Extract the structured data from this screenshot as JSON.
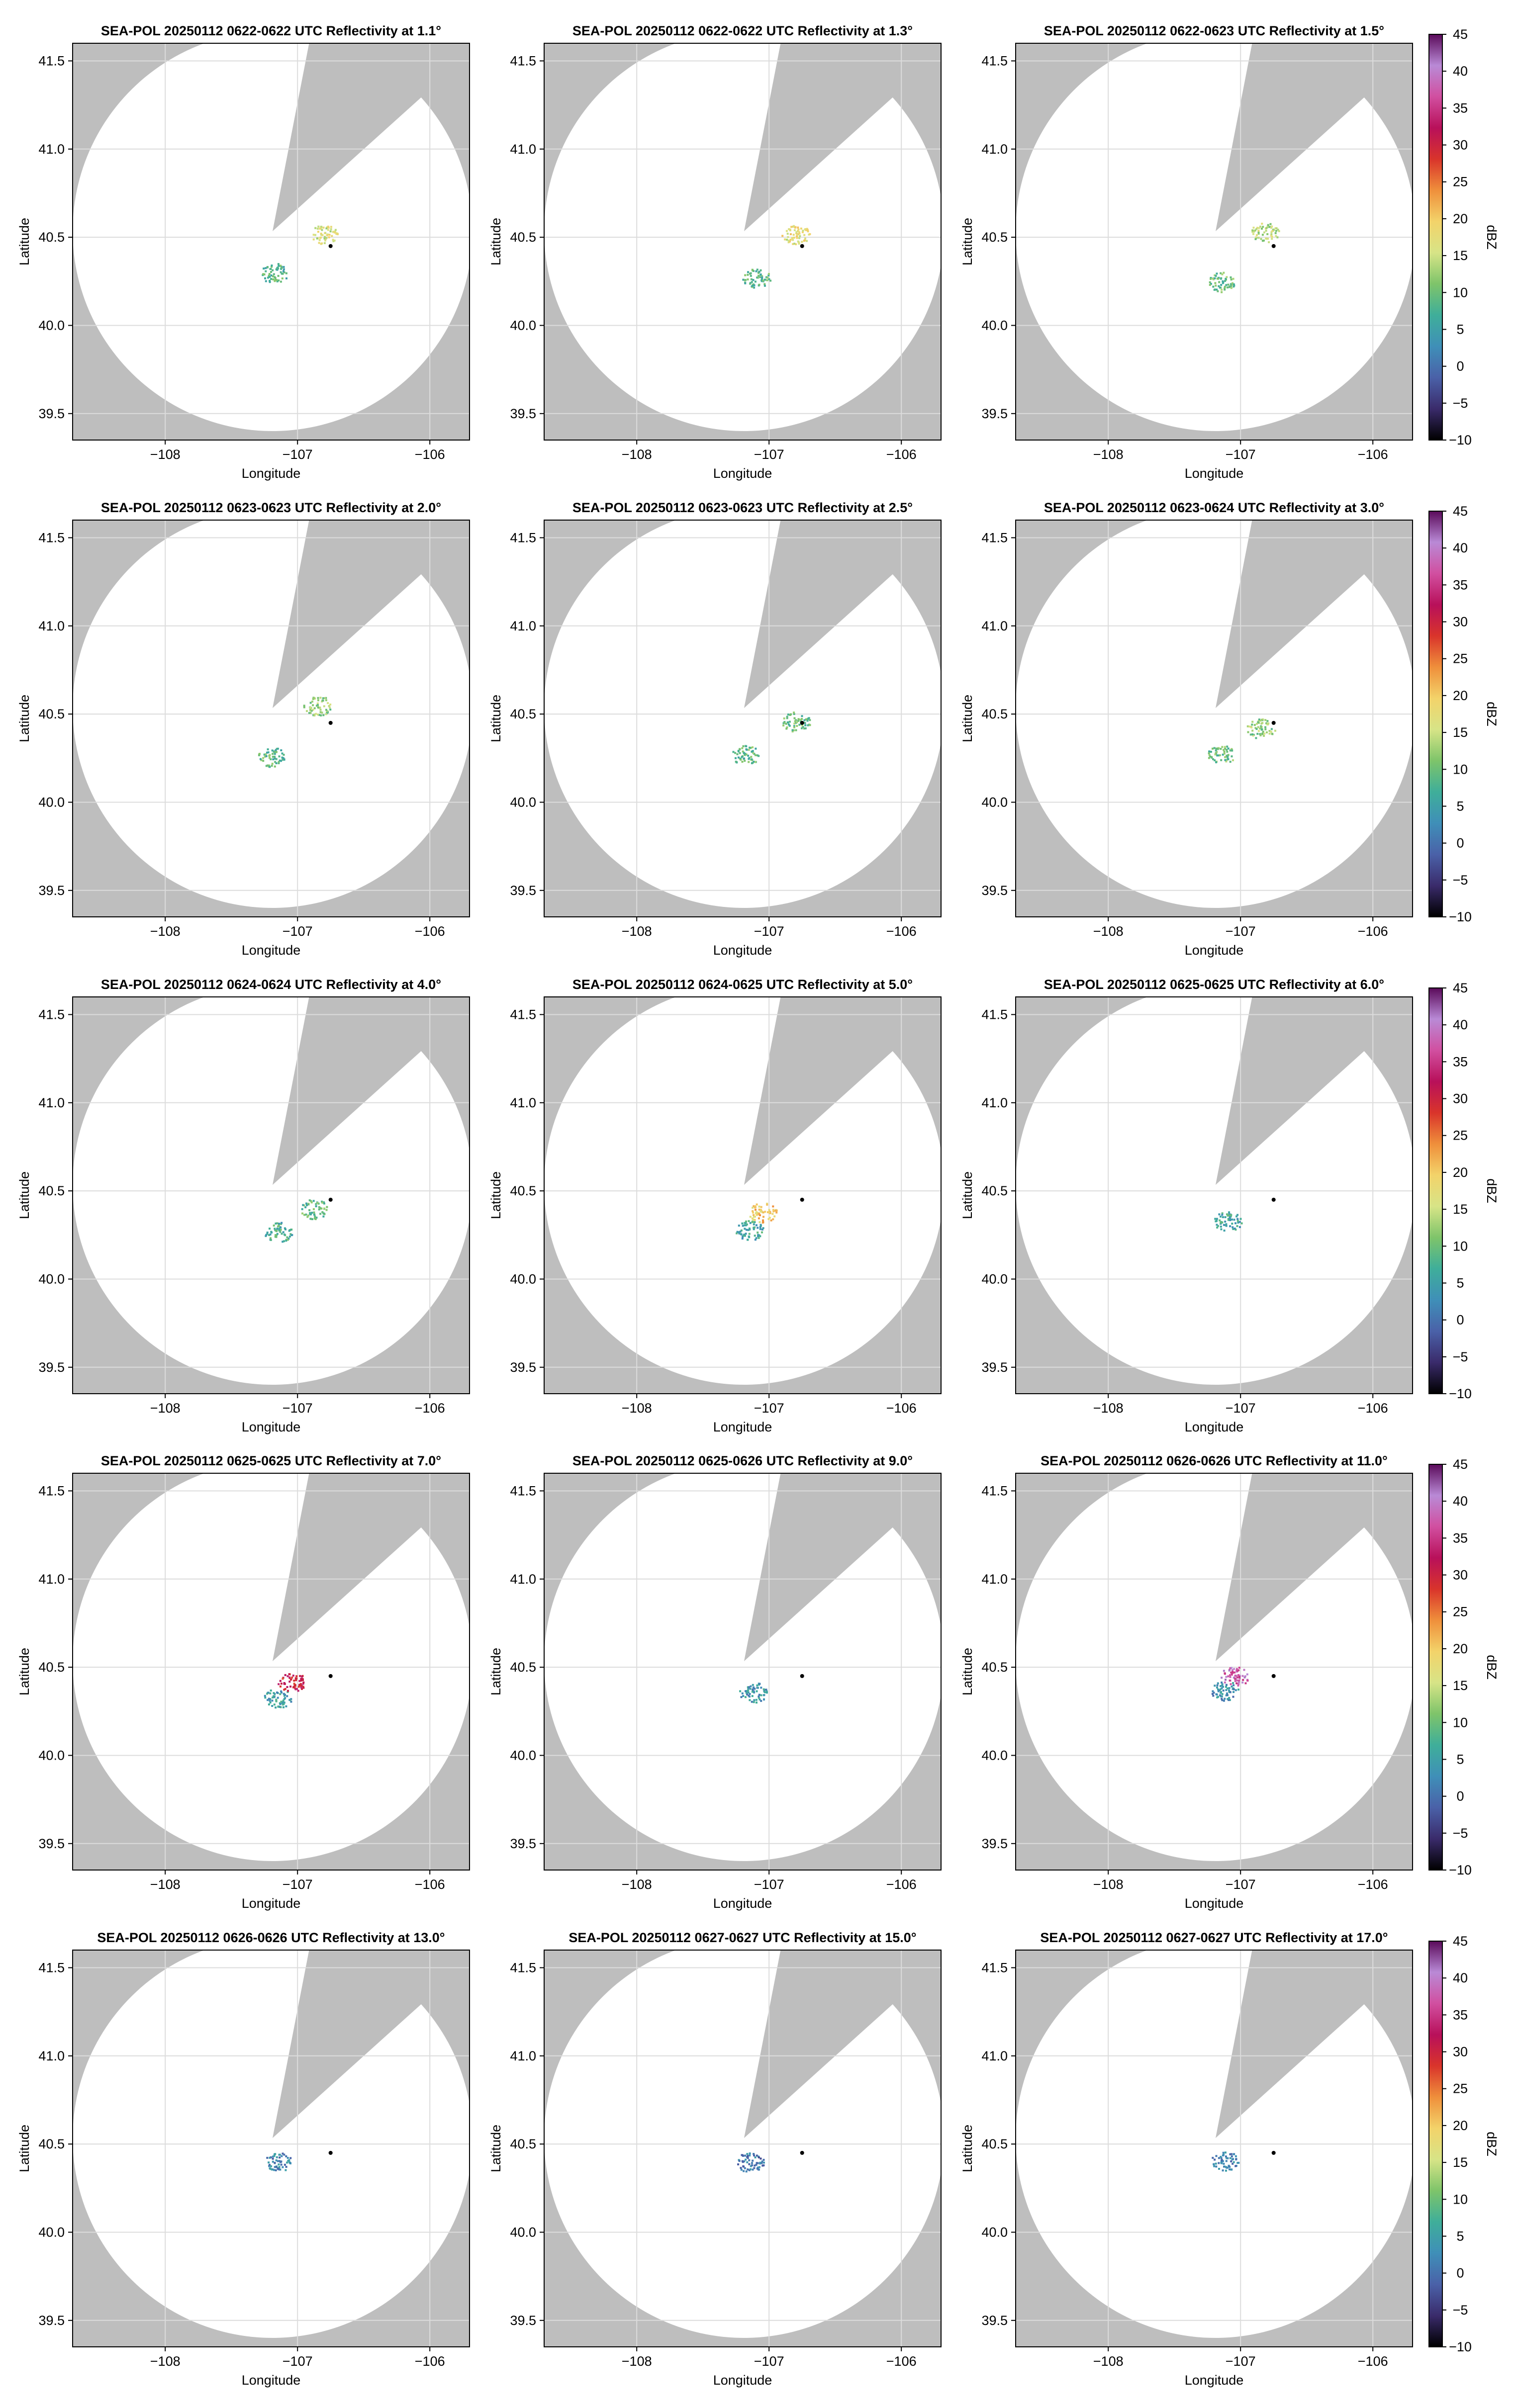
{
  "figure": {
    "xlabel": "Longitude",
    "ylabel": "Latitude",
    "colorbar_label": "dBZ",
    "colors": {
      "blocked_sector": "#bebebe",
      "scan_area": "#ffffff",
      "grid": "#dcdcdc",
      "frame": "#000000",
      "radar_marker": "#000000"
    },
    "colormap": "HomeyerRainbow-like",
    "colormap_stops": [
      "#000000",
      "#3a2b6b",
      "#4a61a8",
      "#3f8fb8",
      "#3fae9a",
      "#7ec46a",
      "#d7e487",
      "#f3d36a",
      "#ef8f3b",
      "#d9342b",
      "#b8105a",
      "#d14fa0",
      "#b98ad6",
      "#5a0a5a"
    ]
  },
  "chart_data": [
    {
      "type": "heatmap",
      "title": "SEA-POL 20250112 0622-0622 UTC Reflectivity at 1.1°",
      "elevation_deg": 1.1,
      "xlabel": "Longitude",
      "ylabel": "Latitude",
      "xlim": [
        -108.7,
        -105.7
      ],
      "ylim": [
        39.35,
        41.6
      ],
      "xticks": [
        -108,
        -107,
        -106
      ],
      "yticks": [
        39.5,
        40.0,
        40.5,
        41.0,
        41.5
      ],
      "grid": true,
      "radar_location": {
        "lon": -106.75,
        "lat": 40.45
      },
      "echoes": [
        {
          "lon": -107.18,
          "lat": 40.3,
          "dbz": 8
        },
        {
          "lon": -106.8,
          "lat": 40.52,
          "dbz": 16
        }
      ],
      "colorbar": false
    },
    {
      "type": "heatmap",
      "title": "SEA-POL 20250112 0622-0622 UTC Reflectivity at 1.3°",
      "elevation_deg": 1.3,
      "xlabel": "Longitude",
      "ylabel": "Latitude",
      "xlim": [
        -108.7,
        -105.7
      ],
      "ylim": [
        39.35,
        41.6
      ],
      "xticks": [
        -108,
        -107,
        -106
      ],
      "yticks": [
        39.5,
        40.0,
        40.5,
        41.0,
        41.5
      ],
      "grid": true,
      "radar_location": {
        "lon": -106.75,
        "lat": 40.45
      },
      "echoes": [
        {
          "lon": -107.1,
          "lat": 40.27,
          "dbz": 9
        },
        {
          "lon": -106.8,
          "lat": 40.52,
          "dbz": 17
        }
      ],
      "colorbar": false
    },
    {
      "type": "heatmap",
      "title": "SEA-POL 20250112 0622-0623 UTC Reflectivity at 1.5°",
      "elevation_deg": 1.5,
      "xlabel": "Longitude",
      "ylabel": "Latitude",
      "xlim": [
        -108.7,
        -105.7
      ],
      "ylim": [
        39.35,
        41.6
      ],
      "xticks": [
        -108,
        -107,
        -106
      ],
      "yticks": [
        39.5,
        40.0,
        40.5,
        41.0,
        41.5
      ],
      "grid": true,
      "radar_location": {
        "lon": -106.75,
        "lat": 40.45
      },
      "echoes": [
        {
          "lon": -107.15,
          "lat": 40.25,
          "dbz": 10
        },
        {
          "lon": -106.82,
          "lat": 40.53,
          "dbz": 14
        }
      ],
      "colorbar": true,
      "colorbar_ticks": [
        -10,
        -5,
        0,
        5,
        10,
        15,
        20,
        25,
        30,
        35,
        40,
        45
      ]
    },
    {
      "type": "heatmap",
      "title": "SEA-POL 20250112 0623-0623 UTC Reflectivity at 2.0°",
      "elevation_deg": 2.0,
      "xlabel": "Longitude",
      "ylabel": "Latitude",
      "xlim": [
        -108.7,
        -105.7
      ],
      "ylim": [
        39.35,
        41.6
      ],
      "xticks": [
        -108,
        -107,
        -106
      ],
      "yticks": [
        39.5,
        40.0,
        40.5,
        41.0,
        41.5
      ],
      "grid": true,
      "radar_location": {
        "lon": -106.75,
        "lat": 40.45
      },
      "echoes": [
        {
          "lon": -107.2,
          "lat": 40.26,
          "dbz": 9
        },
        {
          "lon": -106.85,
          "lat": 40.55,
          "dbz": 12
        }
      ],
      "colorbar": false
    },
    {
      "type": "heatmap",
      "title": "SEA-POL 20250112 0623-0623 UTC Reflectivity at 2.5°",
      "elevation_deg": 2.5,
      "xlabel": "Longitude",
      "ylabel": "Latitude",
      "xlim": [
        -108.7,
        -105.7
      ],
      "ylim": [
        39.35,
        41.6
      ],
      "xticks": [
        -108,
        -107,
        -106
      ],
      "yticks": [
        39.5,
        40.0,
        40.5,
        41.0,
        41.5
      ],
      "grid": true,
      "radar_location": {
        "lon": -106.75,
        "lat": 40.45
      },
      "echoes": [
        {
          "lon": -107.18,
          "lat": 40.27,
          "dbz": 9
        },
        {
          "lon": -106.8,
          "lat": 40.46,
          "dbz": 10
        }
      ],
      "colorbar": false
    },
    {
      "type": "heatmap",
      "title": "SEA-POL 20250112 0623-0624 UTC Reflectivity at 3.0°",
      "elevation_deg": 3.0,
      "xlabel": "Longitude",
      "ylabel": "Latitude",
      "xlim": [
        -108.7,
        -105.7
      ],
      "ylim": [
        39.35,
        41.6
      ],
      "xticks": [
        -108,
        -107,
        -106
      ],
      "yticks": [
        39.5,
        40.0,
        40.5,
        41.0,
        41.5
      ],
      "grid": true,
      "radar_location": {
        "lon": -106.75,
        "lat": 40.45
      },
      "echoes": [
        {
          "lon": -107.15,
          "lat": 40.27,
          "dbz": 10
        },
        {
          "lon": -106.85,
          "lat": 40.42,
          "dbz": 12
        }
      ],
      "colorbar": true,
      "colorbar_ticks": [
        -10,
        -5,
        0,
        5,
        10,
        15,
        20,
        25,
        30,
        35,
        40,
        45
      ]
    },
    {
      "type": "heatmap",
      "title": "SEA-POL 20250112 0624-0624 UTC Reflectivity at 4.0°",
      "elevation_deg": 4.0,
      "xlabel": "Longitude",
      "ylabel": "Latitude",
      "xlim": [
        -108.7,
        -105.7
      ],
      "ylim": [
        39.35,
        41.6
      ],
      "xticks": [
        -108,
        -107,
        -106
      ],
      "yticks": [
        39.5,
        40.0,
        40.5,
        41.0,
        41.5
      ],
      "grid": true,
      "radar_location": {
        "lon": -106.75,
        "lat": 40.45
      },
      "echoes": [
        {
          "lon": -107.15,
          "lat": 40.27,
          "dbz": 7
        },
        {
          "lon": -106.88,
          "lat": 40.4,
          "dbz": 9
        }
      ],
      "colorbar": false
    },
    {
      "type": "heatmap",
      "title": "SEA-POL 20250112 0624-0625 UTC Reflectivity at 5.0°",
      "elevation_deg": 5.0,
      "xlabel": "Longitude",
      "ylabel": "Latitude",
      "xlim": [
        -108.7,
        -105.7
      ],
      "ylim": [
        39.35,
        41.6
      ],
      "xticks": [
        -108,
        -107,
        -106
      ],
      "yticks": [
        39.5,
        40.0,
        40.5,
        41.0,
        41.5
      ],
      "grid": true,
      "radar_location": {
        "lon": -106.75,
        "lat": 40.45
      },
      "echoes": [
        {
          "lon": -107.15,
          "lat": 40.28,
          "dbz": 6
        },
        {
          "lon": -107.05,
          "lat": 40.38,
          "dbz": 20
        }
      ],
      "colorbar": false
    },
    {
      "type": "heatmap",
      "title": "SEA-POL 20250112 0625-0625 UTC Reflectivity at 6.0°",
      "elevation_deg": 6.0,
      "xlabel": "Longitude",
      "ylabel": "Latitude",
      "xlim": [
        -108.7,
        -105.7
      ],
      "ylim": [
        39.35,
        41.6
      ],
      "xticks": [
        -108,
        -107,
        -106
      ],
      "yticks": [
        39.5,
        40.0,
        40.5,
        41.0,
        41.5
      ],
      "grid": true,
      "radar_location": {
        "lon": -106.75,
        "lat": 40.45
      },
      "echoes": [
        {
          "lon": -107.1,
          "lat": 40.33,
          "dbz": 6
        }
      ],
      "colorbar": true,
      "colorbar_ticks": [
        -10,
        -5,
        0,
        5,
        10,
        15,
        20,
        25,
        30,
        35,
        40,
        45
      ]
    },
    {
      "type": "heatmap",
      "title": "SEA-POL 20250112 0625-0625 UTC Reflectivity at 7.0°",
      "elevation_deg": 7.0,
      "xlabel": "Longitude",
      "ylabel": "Latitude",
      "xlim": [
        -108.7,
        -105.7
      ],
      "ylim": [
        39.35,
        41.6
      ],
      "xticks": [
        -108,
        -107,
        -106
      ],
      "yticks": [
        39.5,
        40.0,
        40.5,
        41.0,
        41.5
      ],
      "grid": true,
      "radar_location": {
        "lon": -106.75,
        "lat": 40.45
      },
      "echoes": [
        {
          "lon": -107.15,
          "lat": 40.33,
          "dbz": 5
        },
        {
          "lon": -107.05,
          "lat": 40.42,
          "dbz": 30
        }
      ],
      "colorbar": false
    },
    {
      "type": "heatmap",
      "title": "SEA-POL 20250112 0625-0626 UTC Reflectivity at 9.0°",
      "elevation_deg": 9.0,
      "xlabel": "Longitude",
      "ylabel": "Latitude",
      "xlim": [
        -108.7,
        -105.7
      ],
      "ylim": [
        39.35,
        41.6
      ],
      "xticks": [
        -108,
        -107,
        -106
      ],
      "yticks": [
        39.5,
        40.0,
        40.5,
        41.0,
        41.5
      ],
      "grid": true,
      "radar_location": {
        "lon": -106.75,
        "lat": 40.45
      },
      "echoes": [
        {
          "lon": -107.12,
          "lat": 40.36,
          "dbz": 4
        }
      ],
      "colorbar": false
    },
    {
      "type": "heatmap",
      "title": "SEA-POL 20250112 0626-0626 UTC Reflectivity at 11.0°",
      "elevation_deg": 11.0,
      "xlabel": "Longitude",
      "ylabel": "Latitude",
      "xlim": [
        -108.7,
        -105.7
      ],
      "ylim": [
        39.35,
        41.6
      ],
      "xticks": [
        -108,
        -107,
        -106
      ],
      "yticks": [
        39.5,
        40.0,
        40.5,
        41.0,
        41.5
      ],
      "grid": true,
      "radar_location": {
        "lon": -106.75,
        "lat": 40.45
      },
      "echoes": [
        {
          "lon": -107.12,
          "lat": 40.37,
          "dbz": 3
        },
        {
          "lon": -107.05,
          "lat": 40.45,
          "dbz": 38
        }
      ],
      "colorbar": true,
      "colorbar_ticks": [
        -10,
        -5,
        0,
        5,
        10,
        15,
        20,
        25,
        30,
        35,
        40,
        45
      ]
    },
    {
      "type": "heatmap",
      "title": "SEA-POL 20250112 0626-0626 UTC Reflectivity at 13.0°",
      "elevation_deg": 13.0,
      "xlabel": "Longitude",
      "ylabel": "Latitude",
      "xlim": [
        -108.7,
        -105.7
      ],
      "ylim": [
        39.35,
        41.6
      ],
      "xticks": [
        -108,
        -107,
        -106
      ],
      "yticks": [
        39.5,
        40.0,
        40.5,
        41.0,
        41.5
      ],
      "grid": true,
      "radar_location": {
        "lon": -106.75,
        "lat": 40.45
      },
      "echoes": [
        {
          "lon": -107.15,
          "lat": 40.4,
          "dbz": 2
        }
      ],
      "colorbar": false
    },
    {
      "type": "heatmap",
      "title": "SEA-POL 20250112 0627-0627 UTC Reflectivity at 15.0°",
      "elevation_deg": 15.0,
      "xlabel": "Longitude",
      "ylabel": "Latitude",
      "xlim": [
        -108.7,
        -105.7
      ],
      "ylim": [
        39.35,
        41.6
      ],
      "xticks": [
        -108,
        -107,
        -106
      ],
      "yticks": [
        39.5,
        40.0,
        40.5,
        41.0,
        41.5
      ],
      "grid": true,
      "radar_location": {
        "lon": -106.75,
        "lat": 40.45
      },
      "echoes": [
        {
          "lon": -107.15,
          "lat": 40.4,
          "dbz": 1
        }
      ],
      "colorbar": false
    },
    {
      "type": "heatmap",
      "title": "SEA-POL 20250112 0627-0627 UTC Reflectivity at 17.0°",
      "elevation_deg": 17.0,
      "xlabel": "Longitude",
      "ylabel": "Latitude",
      "xlim": [
        -108.7,
        -105.7
      ],
      "ylim": [
        39.35,
        41.6
      ],
      "xticks": [
        -108,
        -107,
        -106
      ],
      "yticks": [
        39.5,
        40.0,
        40.5,
        41.0,
        41.5
      ],
      "grid": true,
      "radar_location": {
        "lon": -106.75,
        "lat": 40.45
      },
      "echoes": [
        {
          "lon": -107.12,
          "lat": 40.41,
          "dbz": 2
        }
      ],
      "colorbar": true,
      "colorbar_ticks": [
        -10,
        -5,
        0,
        5,
        10,
        15,
        20,
        25,
        30,
        35,
        40,
        45
      ]
    }
  ]
}
